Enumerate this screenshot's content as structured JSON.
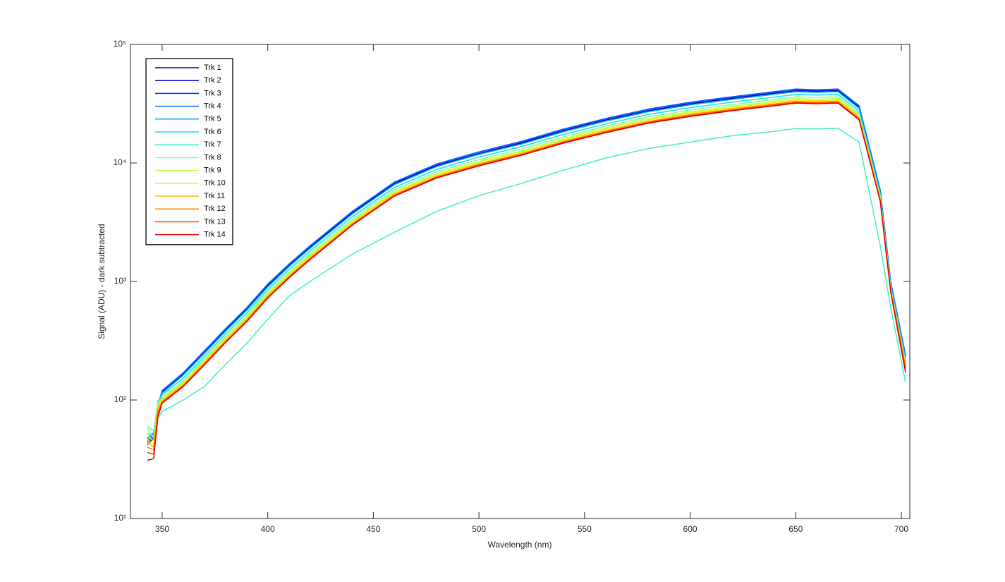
{
  "chart_data": {
    "type": "line",
    "xlabel": "Wavelength (nm)",
    "ylabel": "Signal (ADU) - dark subtracted",
    "log_y": true,
    "legend": "northwest",
    "box": true,
    "xlim": [
      335,
      704
    ],
    "xticks": [
      350,
      400,
      450,
      500,
      550,
      600,
      650,
      700
    ],
    "ylim": [
      10,
      100000
    ],
    "yticks": [
      {
        "value": 10,
        "label": "10¹"
      },
      {
        "value": 100,
        "label": "10²"
      },
      {
        "value": 1000,
        "label": "10³"
      },
      {
        "value": 10000,
        "label": "10⁴"
      },
      {
        "value": 100000,
        "label": "10⁵"
      }
    ],
    "x": [
      343,
      346,
      348,
      350,
      360,
      370,
      380,
      390,
      400,
      410,
      420,
      440,
      460,
      480,
      500,
      520,
      540,
      560,
      580,
      600,
      620,
      640,
      650,
      660,
      670,
      680,
      690,
      695,
      702
    ],
    "series": [
      {
        "name": "Trk 1",
        "color": "#0000a8",
        "values": [
          42,
          48,
          87,
          116,
          165,
          252,
          388,
          582,
          922,
          1360,
          1940,
          3780,
          6690,
          9510,
          12000,
          14700,
          18700,
          23000,
          27500,
          31500,
          35100,
          38800,
          40700,
          40300,
          40700,
          29500,
          5700,
          950,
          228
        ]
      },
      {
        "name": "Trk 2",
        "color": "#0000e0",
        "values": [
          44,
          50,
          89,
          119,
          168,
          257,
          396,
          594,
          940,
          1390,
          1980,
          3860,
          6830,
          9700,
          12300,
          15000,
          19100,
          23500,
          28100,
          32200,
          35800,
          39600,
          41600,
          41100,
          41600,
          30100,
          5840,
          970,
          233
        ]
      },
      {
        "name": "Trk 3",
        "color": "#0030ff",
        "values": [
          45,
          50,
          90,
          120,
          170,
          260,
          400,
          600,
          950,
          1400,
          2000,
          3900,
          6900,
          9800,
          12400,
          15200,
          19300,
          23700,
          28400,
          32500,
          36200,
          40000,
          42000,
          41500,
          42000,
          30400,
          5900,
          980,
          235
        ]
      },
      {
        "name": "Trk 4",
        "color": "#0070ff",
        "values": [
          47,
          52,
          92,
          118,
          169,
          258,
          397,
          596,
          945,
          1390,
          1990,
          3880,
          6850,
          9740,
          12300,
          15100,
          19200,
          23600,
          28200,
          32300,
          36000,
          39700,
          41700,
          41200,
          41700,
          30200,
          5900,
          990,
          240
        ]
      },
      {
        "name": "Trk 5",
        "color": "#00acff",
        "values": [
          48,
          53,
          95,
          114,
          162,
          247,
          380,
          570,
          900,
          1330,
          1900,
          3700,
          6560,
          9310,
          11800,
          14400,
          18300,
          22500,
          27000,
          30900,
          34400,
          38000,
          39900,
          39400,
          39900,
          28900,
          5600,
          930,
          225
        ]
      },
      {
        "name": "Trk 6",
        "color": "#10e0f0",
        "values": [
          52,
          50,
          98,
          110,
          153,
          234,
          360,
          540,
          855,
          1260,
          1800,
          3510,
          6210,
          8820,
          11200,
          13700,
          17400,
          21300,
          25600,
          29300,
          32600,
          36000,
          37800,
          37400,
          37800,
          27400,
          5400,
          900,
          215
        ]
      },
      {
        "name": "Trk 7",
        "color": "#40f0c0",
        "values": [
          60,
          55,
          70,
          80,
          100,
          130,
          200,
          300,
          480,
          750,
          1000,
          1700,
          2600,
          3900,
          5300,
          6700,
          8700,
          11000,
          13200,
          15000,
          17000,
          18500,
          19500,
          19400,
          19600,
          15000,
          2000,
          600,
          140
        ]
      },
      {
        "name": "Trk 8",
        "color": "#80ff90",
        "values": [
          58,
          48,
          95,
          105,
          146,
          224,
          344,
          516,
          817,
          1200,
          1720,
          3350,
          5930,
          8430,
          10700,
          13100,
          16600,
          20400,
          24400,
          28000,
          31100,
          34400,
          36100,
          35700,
          36100,
          26100,
          5200,
          880,
          205
        ]
      },
      {
        "name": "Trk 9",
        "color": "#b8ff48",
        "values": [
          50,
          45,
          92,
          102,
          141,
          216,
          332,
          498,
          789,
          1160,
          1660,
          3240,
          5730,
          8130,
          10300,
          12600,
          16000,
          19700,
          23600,
          27000,
          30000,
          33200,
          34900,
          34400,
          34900,
          25200,
          5100,
          860,
          200
        ]
      },
      {
        "name": "Trk 10",
        "color": "#f0ec00",
        "values": [
          46,
          42,
          88,
          100,
          138,
          211,
          324,
          486,
          770,
          1130,
          1620,
          3160,
          5590,
          7940,
          10000,
          12300,
          15600,
          19200,
          23000,
          26300,
          29300,
          32400,
          34000,
          33600,
          34000,
          24600,
          5000,
          850,
          195
        ]
      },
      {
        "name": "Trk 11",
        "color": "#ffb400",
        "values": [
          44,
          40,
          85,
          98,
          134,
          205,
          316,
          474,
          750,
          1110,
          1580,
          3080,
          5450,
          7740,
          9800,
          12000,
          15200,
          18700,
          22400,
          25700,
          28600,
          31600,
          33200,
          32800,
          33200,
          24000,
          4900,
          840,
          190
        ]
      },
      {
        "name": "Trk 12",
        "color": "#ff8000",
        "values": [
          40,
          38,
          80,
          96,
          133,
          203,
          312,
          468,
          741,
          1090,
          1560,
          3040,
          5380,
          7640,
          9670,
          11900,
          15100,
          18500,
          22200,
          25400,
          28200,
          31200,
          32800,
          32400,
          32800,
          23700,
          4850,
          830,
          188
        ]
      },
      {
        "name": "Trk 13",
        "color": "#ff4000",
        "values": [
          36,
          35,
          76,
          95,
          131,
          200,
          308,
          462,
          732,
          1080,
          1540,
          3000,
          5310,
          7550,
          9550,
          11700,
          14900,
          18200,
          21900,
          25000,
          27900,
          30800,
          32300,
          32000,
          32300,
          23400,
          4800,
          820,
          185
        ]
      },
      {
        "name": "Trk 14",
        "color": "#e00000",
        "values": [
          31,
          32,
          72,
          94,
          130,
          198,
          305,
          457,
          724,
          1070,
          1530,
          2980,
          5260,
          7470,
          9450,
          11600,
          14700,
          18000,
          21600,
          24700,
          27600,
          30400,
          32000,
          31600,
          32000,
          23200,
          4750,
          810,
          170
        ]
      }
    ]
  }
}
